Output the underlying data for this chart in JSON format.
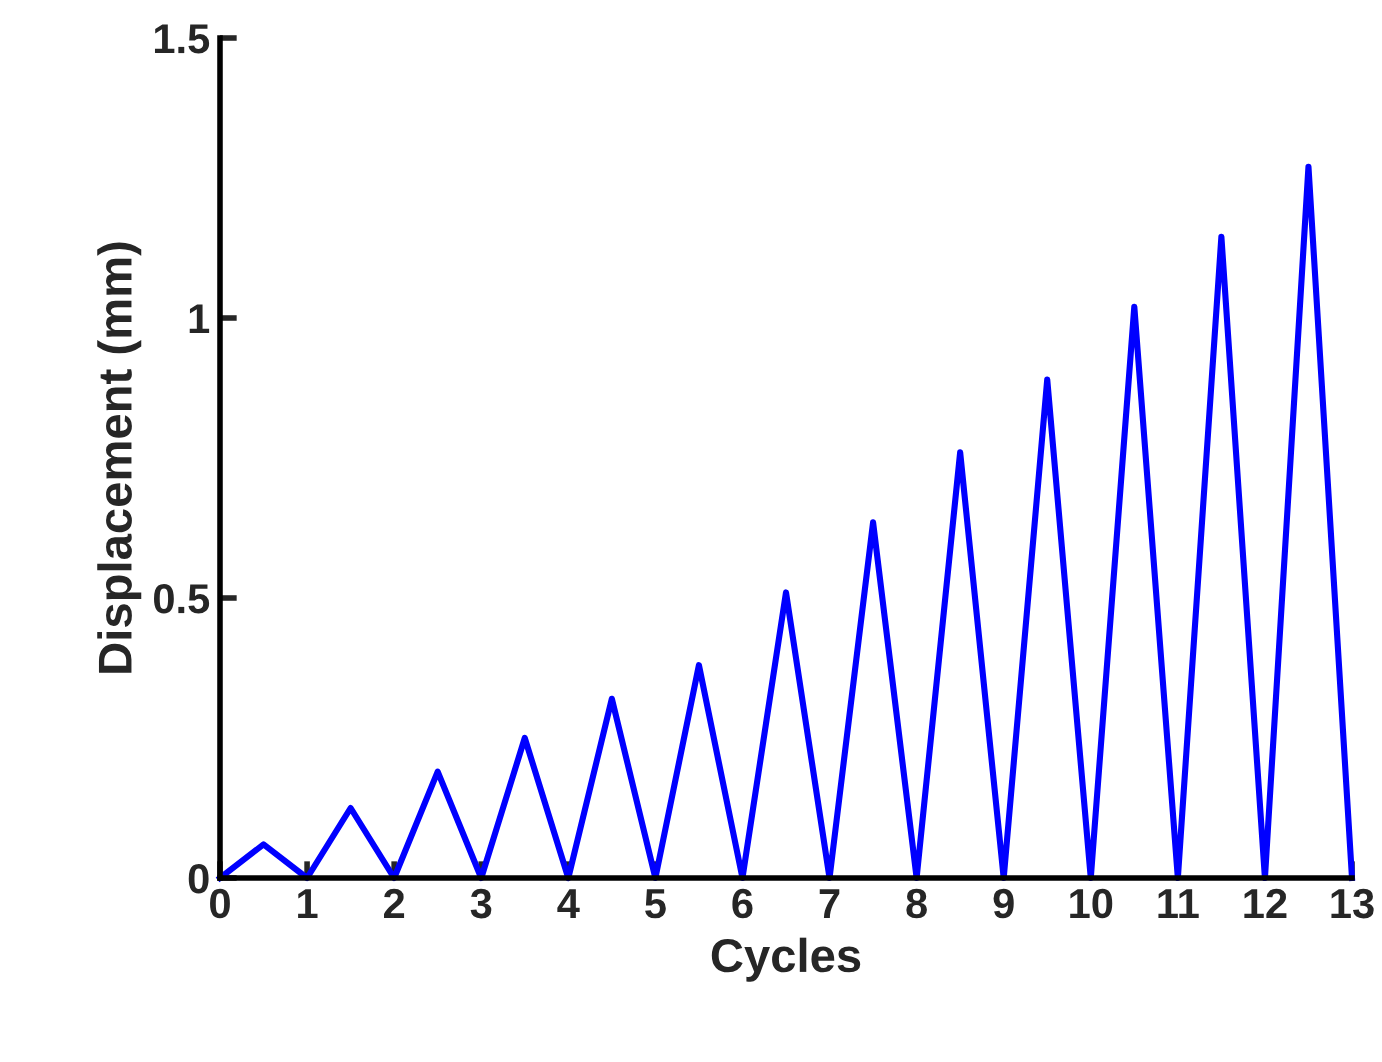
{
  "chart_data": {
    "type": "line",
    "xlabel": "Cycles",
    "ylabel": "Displacement (mm)",
    "x": [
      0,
      0.5,
      1,
      1.5,
      2,
      2.5,
      3,
      3.5,
      4,
      4.5,
      5,
      5.5,
      6,
      6.5,
      7,
      7.5,
      8,
      8.5,
      9,
      9.5,
      10,
      10.5,
      11,
      11.5,
      12,
      12.5,
      13
    ],
    "series": [
      {
        "color": "#0000ff",
        "values": [
          0,
          0.06,
          0,
          0.125,
          0,
          0.19,
          0,
          0.25,
          0,
          0.32,
          0,
          0.38,
          0,
          0.51,
          0,
          0.635,
          0,
          0.76,
          0,
          0.89,
          0,
          1.02,
          0,
          1.145,
          0,
          1.27,
          0
        ]
      }
    ],
    "xlim": [
      0,
      13
    ],
    "ylim": [
      0,
      1.5
    ],
    "xticks": [
      0,
      1,
      2,
      3,
      4,
      5,
      6,
      7,
      8,
      9,
      10,
      11,
      12,
      13
    ],
    "yticks": [
      0,
      0.5,
      1,
      1.5
    ],
    "grid": false,
    "legend": false,
    "marker": "none",
    "line_style": "solid"
  }
}
